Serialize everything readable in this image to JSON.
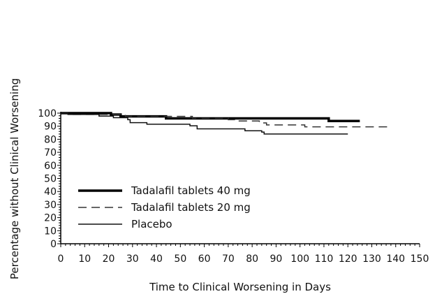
{
  "chart_data": {
    "type": "line",
    "title": "",
    "xlabel": "Time to Clinical Worsening in Days",
    "ylabel": "Percentage without Clinical Worsening",
    "xlim": [
      0,
      150
    ],
    "ylim": [
      0,
      100
    ],
    "xticks": [
      0,
      10,
      20,
      30,
      40,
      50,
      60,
      70,
      80,
      90,
      100,
      110,
      120,
      130,
      140,
      150
    ],
    "yticks": [
      0,
      10,
      20,
      30,
      40,
      50,
      60,
      70,
      80,
      90,
      100
    ],
    "grid": false,
    "legend_position": "bottom-left",
    "step": true,
    "series": [
      {
        "name": "Tadalafil tablets 40 mg",
        "style": "thick-solid",
        "color": "#000000",
        "x": [
          0,
          21,
          25,
          44,
          112,
          125
        ],
        "y": [
          100,
          98.9,
          97.5,
          96,
          94,
          94
        ]
      },
      {
        "name": "Tadalafil tablets 20 mg",
        "style": "dashed",
        "color": "#333333",
        "x": [
          0,
          3,
          27,
          55,
          70,
          74,
          83,
          86,
          102,
          137
        ],
        "y": [
          100,
          99,
          97.5,
          96,
          95,
          94,
          92.5,
          91,
          89.5,
          89.5
        ]
      },
      {
        "name": "Placebo",
        "style": "thin-solid",
        "color": "#111111",
        "x": [
          0,
          3,
          16,
          22,
          28,
          29,
          36,
          54,
          57,
          77,
          84,
          85,
          120
        ],
        "y": [
          100,
          99,
          97.7,
          96.5,
          95,
          92.7,
          91.5,
          90.3,
          88,
          86.5,
          85.5,
          84,
          84
        ]
      }
    ]
  }
}
